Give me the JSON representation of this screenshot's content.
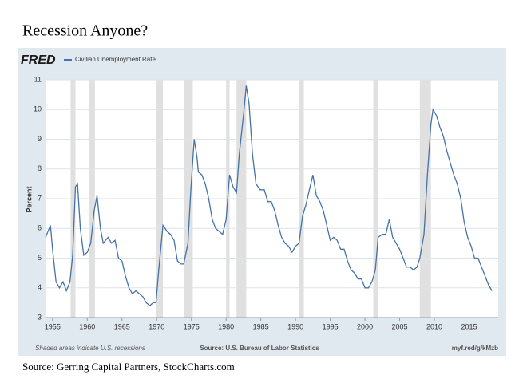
{
  "title": "Recession Anyone?",
  "source": "Source: Gerring Capital Partners, StockCharts.com",
  "chart_data": {
    "type": "line",
    "logo": "FRED",
    "ylabel": "Percent",
    "footer_left": "Shaded areas indicate U.S. recessions",
    "footer_center": "Source: U.S. Bureau of Labor Statistics",
    "footer_right": "myf.red/g/kMzb",
    "xlim": [
      1954.1,
      2019.2
    ],
    "ylim": [
      3,
      11
    ],
    "xticks": [
      1955,
      1960,
      1965,
      1970,
      1975,
      1980,
      1985,
      1990,
      1995,
      2000,
      2005,
      2010,
      2015
    ],
    "yticks": [
      3,
      4,
      5,
      6,
      7,
      8,
      9,
      10,
      11
    ],
    "grid": true,
    "recession_color": "#e0e0e0",
    "recessions": [
      [
        1957.6,
        1958.3
      ],
      [
        1960.3,
        1961.1
      ],
      [
        1969.9,
        1970.9
      ],
      [
        1973.9,
        1975.2
      ],
      [
        1980.0,
        1980.5
      ],
      [
        1981.5,
        1982.9
      ],
      [
        1990.5,
        1991.2
      ],
      [
        2001.2,
        2001.9
      ],
      [
        2007.9,
        2009.5
      ]
    ],
    "x": [
      1954.0,
      1954.7,
      1955.0,
      1955.5,
      1956.0,
      1956.5,
      1957.0,
      1957.5,
      1957.9,
      1958.3,
      1958.6,
      1959.0,
      1959.5,
      1960.0,
      1960.5,
      1961.0,
      1961.4,
      1961.9,
      1962.3,
      1963.0,
      1963.5,
      1964.0,
      1964.5,
      1965.0,
      1965.5,
      1966.0,
      1966.5,
      1967.0,
      1967.5,
      1968.0,
      1968.5,
      1969.0,
      1969.5,
      1969.9,
      1970.3,
      1970.9,
      1971.5,
      1972.0,
      1972.5,
      1973.0,
      1973.5,
      1973.9,
      1974.5,
      1974.9,
      1975.4,
      1975.8,
      1976.0,
      1976.5,
      1977.0,
      1977.5,
      1978.0,
      1978.5,
      1979.0,
      1979.5,
      1980.0,
      1980.5,
      1981.0,
      1981.5,
      1981.9,
      1982.5,
      1982.9,
      1983.3,
      1983.8,
      1984.3,
      1984.9,
      1985.5,
      1986.0,
      1986.5,
      1987.0,
      1987.5,
      1988.0,
      1988.5,
      1989.0,
      1989.5,
      1990.0,
      1990.5,
      1991.0,
      1991.5,
      1992.0,
      1992.5,
      1993.0,
      1993.5,
      1994.0,
      1994.5,
      1995.0,
      1995.5,
      1996.0,
      1996.5,
      1997.0,
      1997.5,
      1998.0,
      1998.5,
      1999.0,
      1999.5,
      2000.0,
      2000.5,
      2001.0,
      2001.5,
      2001.9,
      2002.5,
      2003.0,
      2003.5,
      2004.0,
      2004.5,
      2005.0,
      2005.5,
      2006.0,
      2006.5,
      2007.0,
      2007.5,
      2007.9,
      2008.5,
      2009.0,
      2009.5,
      2009.8,
      2010.3,
      2010.8,
      2011.3,
      2011.8,
      2012.3,
      2012.8,
      2013.3,
      2013.8,
      2014.3,
      2014.8,
      2015.3,
      2015.8,
      2016.3,
      2016.8,
      2017.3,
      2017.8,
      2018.3
    ],
    "series": [
      {
        "name": "Civilian Unemployment Rate",
        "color": "#4572a7",
        "values": [
          5.7,
          6.1,
          5.3,
          4.2,
          4.0,
          4.2,
          3.9,
          4.2,
          5.1,
          7.4,
          7.5,
          6.0,
          5.1,
          5.2,
          5.5,
          6.6,
          7.1,
          6.0,
          5.5,
          5.7,
          5.5,
          5.6,
          5.0,
          4.9,
          4.4,
          4.0,
          3.8,
          3.9,
          3.8,
          3.7,
          3.5,
          3.4,
          3.5,
          3.5,
          4.6,
          6.1,
          5.9,
          5.8,
          5.6,
          4.9,
          4.8,
          4.8,
          5.5,
          7.2,
          9.0,
          8.4,
          7.9,
          7.8,
          7.5,
          7.0,
          6.3,
          6.0,
          5.9,
          5.8,
          6.3,
          7.8,
          7.4,
          7.2,
          8.5,
          9.8,
          10.8,
          10.2,
          8.5,
          7.5,
          7.3,
          7.3,
          6.9,
          6.9,
          6.6,
          6.1,
          5.7,
          5.5,
          5.4,
          5.2,
          5.4,
          5.5,
          6.4,
          6.8,
          7.3,
          7.8,
          7.1,
          6.9,
          6.6,
          6.1,
          5.6,
          5.7,
          5.6,
          5.3,
          5.3,
          4.9,
          4.6,
          4.5,
          4.3,
          4.3,
          4.0,
          4.0,
          4.2,
          4.6,
          5.7,
          5.8,
          5.8,
          6.3,
          5.7,
          5.5,
          5.3,
          5.0,
          4.7,
          4.7,
          4.6,
          4.7,
          5.0,
          5.8,
          7.8,
          9.5,
          10.0,
          9.8,
          9.4,
          9.1,
          8.6,
          8.2,
          7.8,
          7.5,
          7.0,
          6.2,
          5.7,
          5.4,
          5.0,
          5.0,
          4.7,
          4.4,
          4.1,
          3.9
        ]
      }
    ]
  }
}
